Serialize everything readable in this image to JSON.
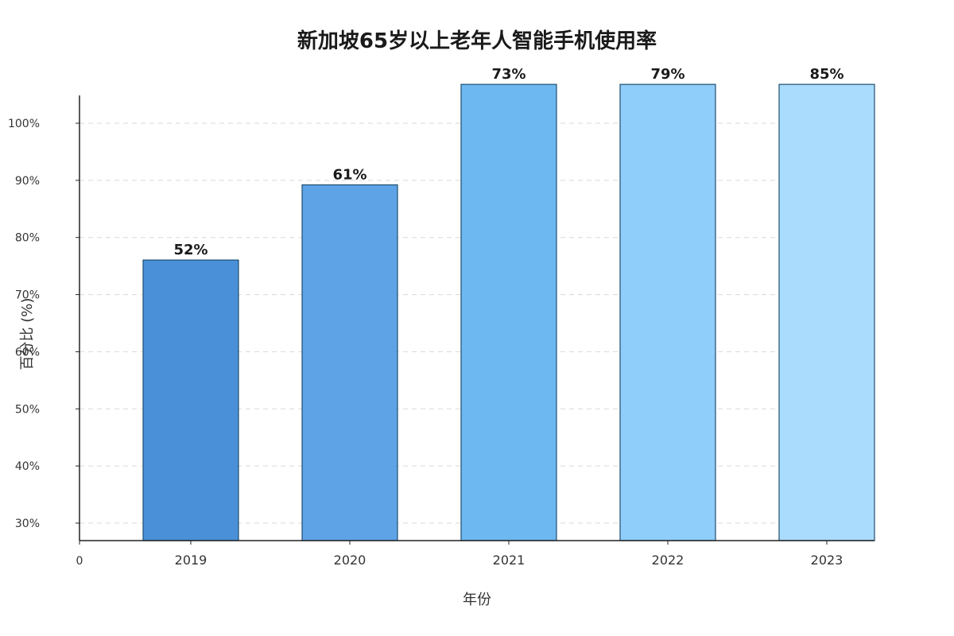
{
  "chart_data": {
    "type": "bar",
    "title": "新加坡65岁以上老年人智能手机使用率",
    "xlabel": "年份",
    "ylabel": "百分比 (%)",
    "categories": [
      "2019",
      "2020",
      "2021",
      "2022",
      "2023"
    ],
    "values": [
      52,
      61,
      73,
      79,
      85
    ],
    "data_labels": [
      "52%",
      "61%",
      "73%",
      "79%",
      "85%"
    ],
    "yticks": [
      {
        "value": 30,
        "label": "30%"
      },
      {
        "value": 40,
        "label": "40%"
      },
      {
        "value": 50,
        "label": "50%"
      },
      {
        "value": 60,
        "label": "60%"
      },
      {
        "value": 70,
        "label": "70%"
      },
      {
        "value": 80,
        "label": "80%"
      },
      {
        "value": 90,
        "label": "90%"
      },
      {
        "value": 100,
        "label": "100%"
      }
    ],
    "origin_label": "0",
    "colors": [
      "#4a90d9",
      "#5ea3e6",
      "#6db8f0",
      "#8fcdfb",
      "#aadcfd"
    ],
    "grid": true,
    "legend": "none"
  }
}
